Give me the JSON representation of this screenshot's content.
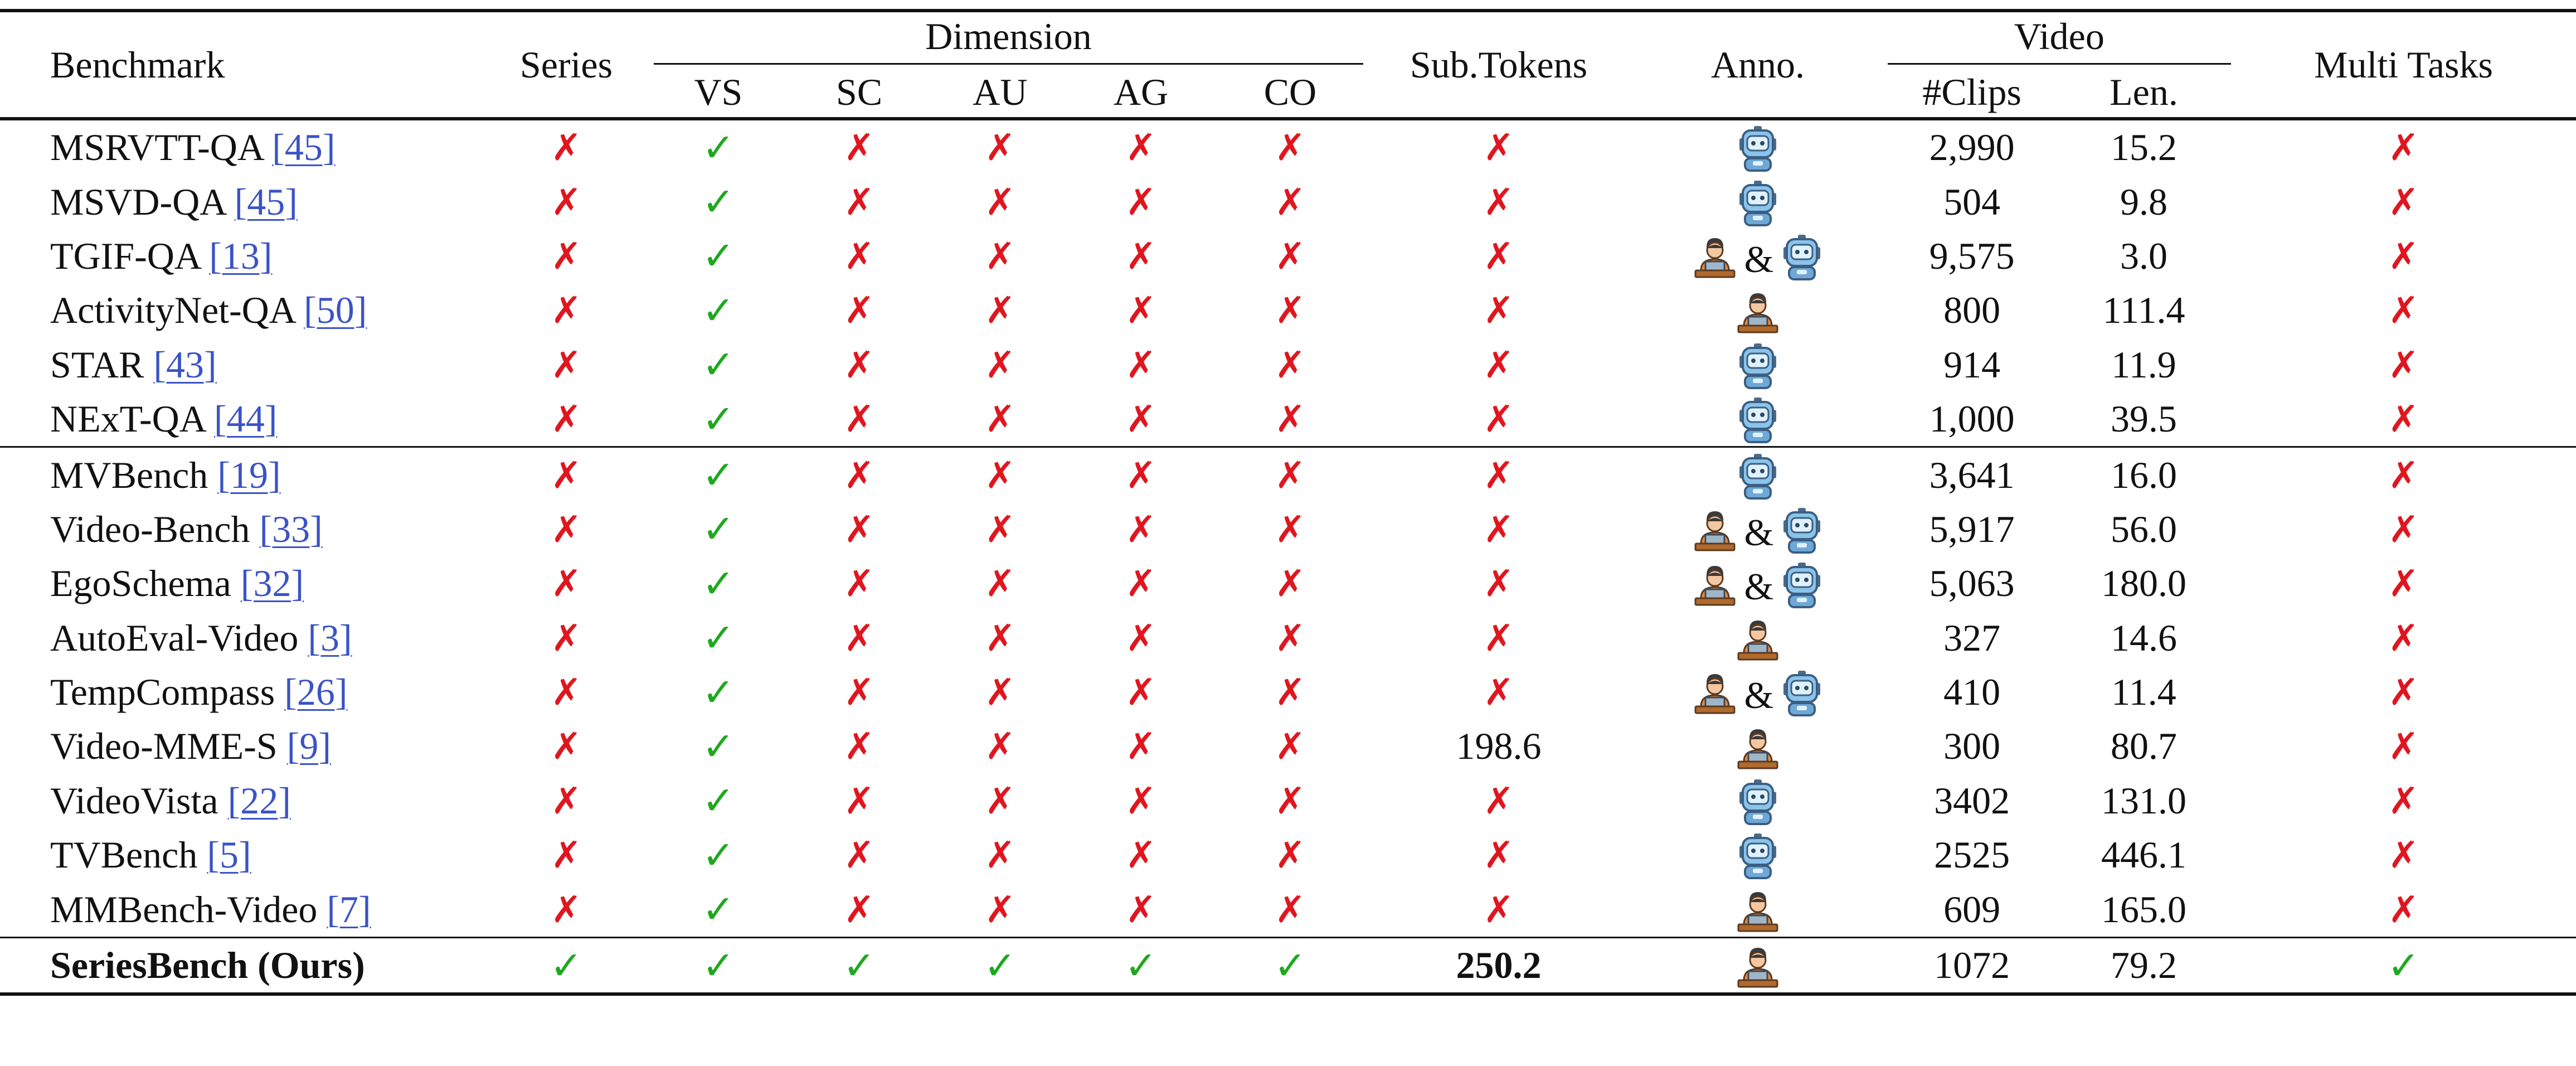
{
  "header": {
    "benchmark": "Benchmark",
    "series": "Series",
    "dimension": "Dimension",
    "dimension_cols": [
      "VS",
      "SC",
      "AU",
      "AG",
      "CO"
    ],
    "sub_tokens": "Sub.Tokens",
    "anno": "Anno.",
    "video": "Video",
    "video_cols": [
      "#Clips",
      "Len."
    ],
    "multi_tasks": "Multi Tasks"
  },
  "symbols": {
    "cross": "✗",
    "check": "✓",
    "amp": "&"
  },
  "groups": [
    {
      "rows": [
        {
          "name": "MSRVTT-QA",
          "cite": "[45]",
          "series": "x",
          "dims": [
            "ok",
            "x",
            "x",
            "x",
            "x"
          ],
          "sub": "x",
          "anno": "robot",
          "clips": "2,990",
          "len": "15.2",
          "multi": "x"
        },
        {
          "name": "MSVD-QA",
          "cite": "[45]",
          "series": "x",
          "dims": [
            "ok",
            "x",
            "x",
            "x",
            "x"
          ],
          "sub": "x",
          "anno": "robot",
          "clips": "504",
          "len": "9.8",
          "multi": "x"
        },
        {
          "name": "TGIF-QA",
          "cite": "[13]",
          "series": "x",
          "dims": [
            "ok",
            "x",
            "x",
            "x",
            "x"
          ],
          "sub": "x",
          "anno": "both",
          "clips": "9,575",
          "len": "3.0",
          "multi": "x"
        },
        {
          "name": "ActivityNet-QA",
          "cite": "[50]",
          "series": "x",
          "dims": [
            "ok",
            "x",
            "x",
            "x",
            "x"
          ],
          "sub": "x",
          "anno": "human",
          "clips": "800",
          "len": "111.4",
          "multi": "x"
        },
        {
          "name": "STAR",
          "cite": "[43]",
          "series": "x",
          "dims": [
            "ok",
            "x",
            "x",
            "x",
            "x"
          ],
          "sub": "x",
          "anno": "robot",
          "clips": "914",
          "len": "11.9",
          "multi": "x"
        },
        {
          "name": "NExT-QA",
          "cite": "[44]",
          "series": "x",
          "dims": [
            "ok",
            "x",
            "x",
            "x",
            "x"
          ],
          "sub": "x",
          "anno": "robot",
          "clips": "1,000",
          "len": "39.5",
          "multi": "x"
        }
      ]
    },
    {
      "rows": [
        {
          "name": "MVBench",
          "cite": "[19]",
          "series": "x",
          "dims": [
            "ok",
            "x",
            "x",
            "x",
            "x"
          ],
          "sub": "x",
          "anno": "robot",
          "clips": "3,641",
          "len": "16.0",
          "multi": "x"
        },
        {
          "name": "Video-Bench",
          "cite": "[33]",
          "series": "x",
          "dims": [
            "ok",
            "x",
            "x",
            "x",
            "x"
          ],
          "sub": "x",
          "anno": "both",
          "clips": "5,917",
          "len": "56.0",
          "multi": "x"
        },
        {
          "name": "EgoSchema",
          "cite": "[32]",
          "series": "x",
          "dims": [
            "ok",
            "x",
            "x",
            "x",
            "x"
          ],
          "sub": "x",
          "anno": "both",
          "clips": "5,063",
          "len": "180.0",
          "multi": "x"
        },
        {
          "name": "AutoEval-Video",
          "cite": "[3]",
          "series": "x",
          "dims": [
            "ok",
            "x",
            "x",
            "x",
            "x"
          ],
          "sub": "x",
          "anno": "human",
          "clips": "327",
          "len": "14.6",
          "multi": "x"
        },
        {
          "name": "TempCompass",
          "cite": "[26]",
          "series": "x",
          "dims": [
            "ok",
            "x",
            "x",
            "x",
            "x"
          ],
          "sub": "x",
          "anno": "both",
          "clips": "410",
          "len": "11.4",
          "multi": "x"
        },
        {
          "name": "Video-MME-S",
          "cite": "[9]",
          "series": "x",
          "dims": [
            "ok",
            "x",
            "x",
            "x",
            "x"
          ],
          "sub": "198.6",
          "anno": "human",
          "clips": "300",
          "len": "80.7",
          "multi": "x"
        },
        {
          "name": "VideoVista",
          "cite": "[22]",
          "series": "x",
          "dims": [
            "ok",
            "x",
            "x",
            "x",
            "x"
          ],
          "sub": "x",
          "anno": "robot",
          "clips": "3402",
          "len": "131.0",
          "multi": "x"
        },
        {
          "name": "TVBench",
          "cite": "[5]",
          "series": "x",
          "dims": [
            "ok",
            "x",
            "x",
            "x",
            "x"
          ],
          "sub": "x",
          "anno": "robot",
          "clips": "2525",
          "len": "446.1",
          "multi": "x"
        },
        {
          "name": "MMBench-Video",
          "cite": "[7]",
          "series": "x",
          "dims": [
            "ok",
            "x",
            "x",
            "x",
            "x"
          ],
          "sub": "x",
          "anno": "human",
          "clips": "609",
          "len": "165.0",
          "multi": "x"
        }
      ]
    },
    {
      "rows": [
        {
          "name": "SeriesBench (Ours)",
          "cite": "",
          "bold": true,
          "series": "ok",
          "dims": [
            "ok",
            "ok",
            "ok",
            "ok",
            "ok"
          ],
          "sub": "250.2",
          "anno": "human",
          "clips": "1072",
          "len": "79.2",
          "multi": "ok"
        }
      ]
    }
  ]
}
